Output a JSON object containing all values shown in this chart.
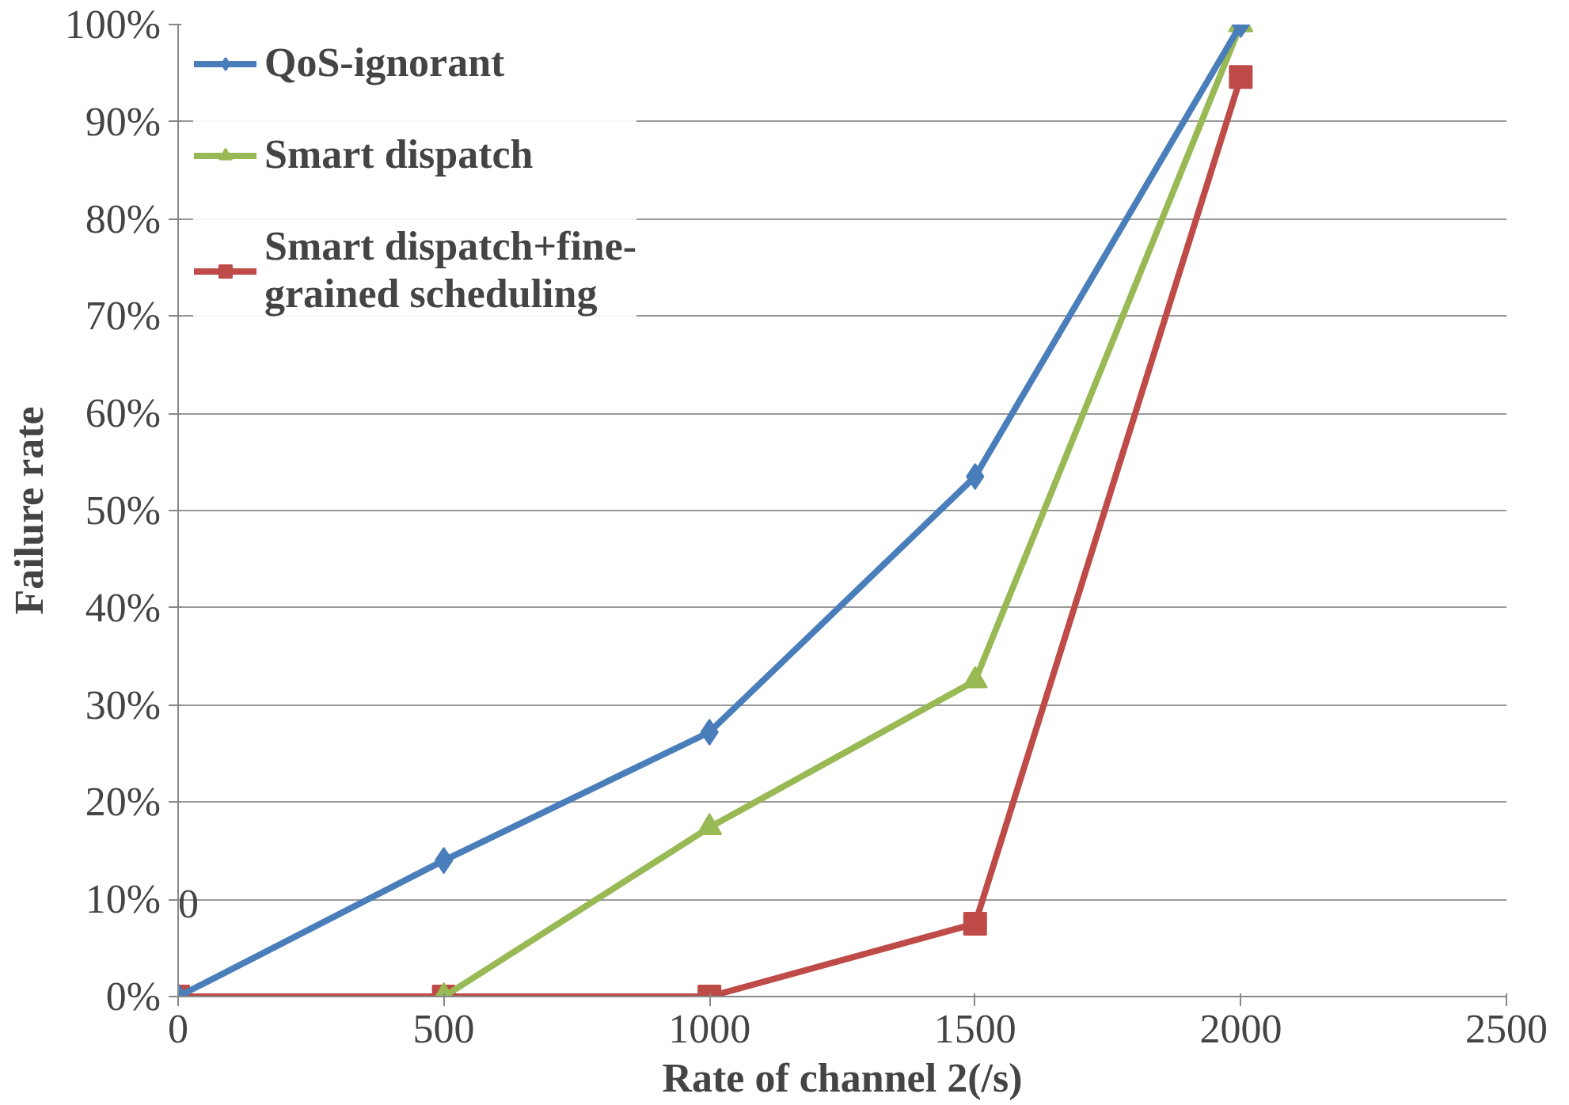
{
  "chart_data": {
    "type": "line",
    "xlabel": "Rate of channel 2(/s)",
    "ylabel": "Failure rate",
    "x": [
      0,
      500,
      1000,
      1500,
      2000
    ],
    "series": [
      {
        "name": "QoS-ignorant",
        "color": "#4a7ebb",
        "marker": "diamond",
        "values": [
          0,
          14.0,
          27.2,
          53.5,
          100
        ]
      },
      {
        "name": "Smart dispatch",
        "color": "#98b954",
        "marker": "triangle",
        "values": [
          null,
          0,
          17.4,
          32.5,
          100
        ]
      },
      {
        "name": "Smart dispatch+fine-\ngrained scheduling",
        "color": "#be4b48",
        "marker": "square",
        "values": [
          0,
          0,
          0,
          7.5,
          94.6
        ]
      }
    ],
    "xlim": [
      0,
      2500
    ],
    "xticks": [
      0,
      500,
      1000,
      1500,
      2000,
      2500
    ],
    "ylim": [
      0,
      100
    ],
    "yticks": [
      {
        "value": 0,
        "label": "0%"
      },
      {
        "value": 10,
        "label": "10%"
      },
      {
        "value": 20,
        "label": "20%"
      },
      {
        "value": 30,
        "label": "30%"
      },
      {
        "value": 40,
        "label": "40%"
      },
      {
        "value": 50,
        "label": "50%"
      },
      {
        "value": 60,
        "label": "60%"
      },
      {
        "value": 70,
        "label": "70%"
      },
      {
        "value": 80,
        "label": "80%"
      },
      {
        "value": 90,
        "label": "90%"
      },
      {
        "value": 100,
        "label": "100%"
      }
    ],
    "grid": "y",
    "legend": "top left",
    "line_style": "solid",
    "annotations": [
      "0"
    ]
  }
}
